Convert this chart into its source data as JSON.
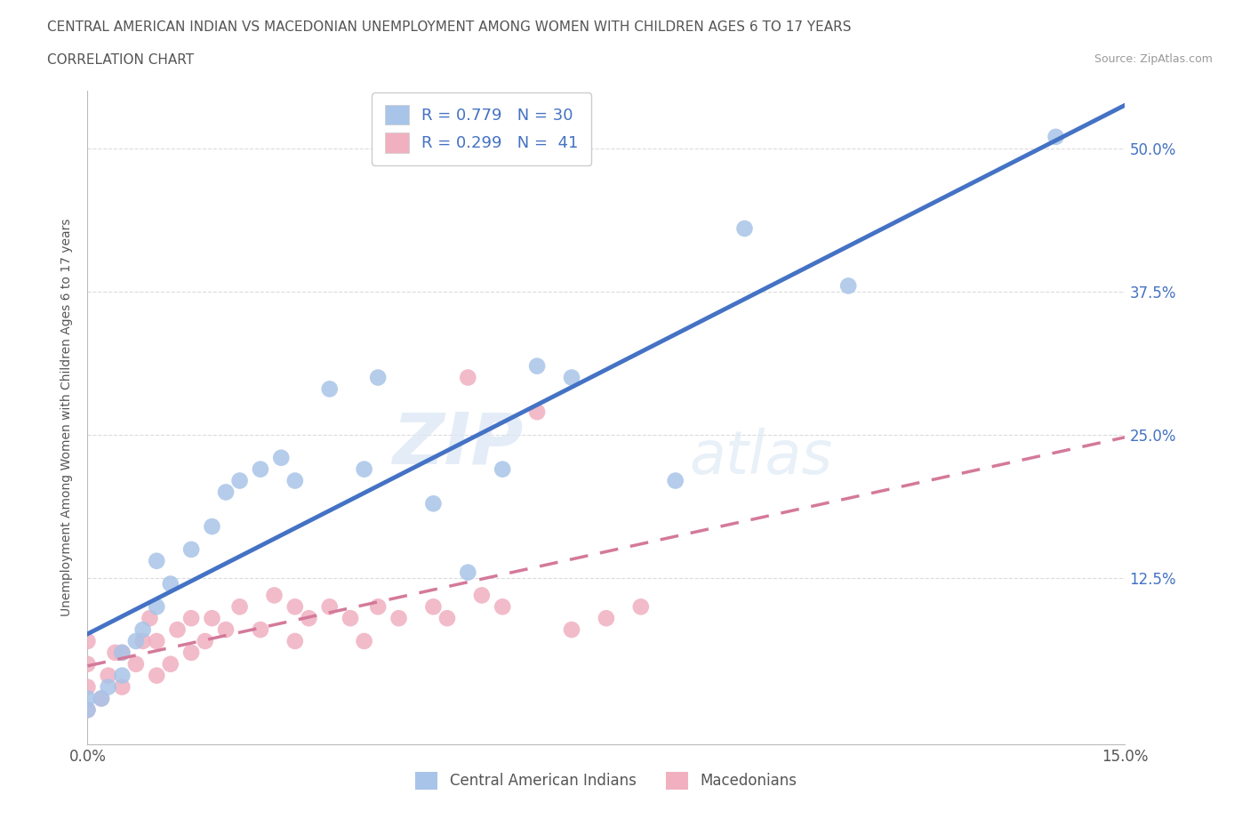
{
  "title_line1": "CENTRAL AMERICAN INDIAN VS MACEDONIAN UNEMPLOYMENT AMONG WOMEN WITH CHILDREN AGES 6 TO 17 YEARS",
  "title_line2": "CORRELATION CHART",
  "source_text": "Source: ZipAtlas.com",
  "ylabel": "Unemployment Among Women with Children Ages 6 to 17 years",
  "xlim": [
    0.0,
    0.15
  ],
  "ylim": [
    -0.02,
    0.55
  ],
  "xticks": [
    0.0,
    0.05,
    0.1,
    0.15
  ],
  "xticklabels": [
    "0.0%",
    "",
    "",
    "15.0%"
  ],
  "yticks": [
    0.0,
    0.125,
    0.25,
    0.375,
    0.5
  ],
  "yticklabels": [
    "",
    "12.5%",
    "25.0%",
    "37.5%",
    "50.0%"
  ],
  "watermark_zip": "ZIP",
  "watermark_atlas": "atlas",
  "blue_color": "#a8c4e8",
  "pink_color": "#f0b0c0",
  "blue_line_color": "#4472c4",
  "pink_line_color": "#d4799a",
  "grid_color": "#d8d8d8",
  "R_blue": 0.779,
  "N_blue": 30,
  "R_pink": 0.299,
  "N_pink": 41,
  "blue_x": [
    0.0,
    0.0,
    0.002,
    0.003,
    0.005,
    0.005,
    0.007,
    0.008,
    0.01,
    0.01,
    0.012,
    0.015,
    0.018,
    0.02,
    0.022,
    0.025,
    0.028,
    0.03,
    0.035,
    0.04,
    0.042,
    0.05,
    0.055,
    0.06,
    0.065,
    0.07,
    0.085,
    0.095,
    0.11,
    0.14
  ],
  "blue_y": [
    0.01,
    0.02,
    0.02,
    0.03,
    0.04,
    0.06,
    0.07,
    0.08,
    0.1,
    0.14,
    0.12,
    0.15,
    0.17,
    0.2,
    0.21,
    0.22,
    0.23,
    0.21,
    0.29,
    0.22,
    0.3,
    0.19,
    0.13,
    0.22,
    0.31,
    0.3,
    0.21,
    0.43,
    0.38,
    0.51
  ],
  "pink_x": [
    0.0,
    0.0,
    0.0,
    0.0,
    0.002,
    0.003,
    0.004,
    0.005,
    0.005,
    0.007,
    0.008,
    0.009,
    0.01,
    0.01,
    0.012,
    0.013,
    0.015,
    0.015,
    0.017,
    0.018,
    0.02,
    0.022,
    0.025,
    0.027,
    0.03,
    0.03,
    0.032,
    0.035,
    0.038,
    0.04,
    0.042,
    0.045,
    0.05,
    0.052,
    0.055,
    0.057,
    0.06,
    0.065,
    0.07,
    0.075,
    0.08
  ],
  "pink_y": [
    0.01,
    0.03,
    0.05,
    0.07,
    0.02,
    0.04,
    0.06,
    0.03,
    0.06,
    0.05,
    0.07,
    0.09,
    0.04,
    0.07,
    0.05,
    0.08,
    0.06,
    0.09,
    0.07,
    0.09,
    0.08,
    0.1,
    0.08,
    0.11,
    0.07,
    0.1,
    0.09,
    0.1,
    0.09,
    0.07,
    0.1,
    0.09,
    0.1,
    0.09,
    0.3,
    0.11,
    0.1,
    0.27,
    0.08,
    0.09,
    0.1
  ]
}
